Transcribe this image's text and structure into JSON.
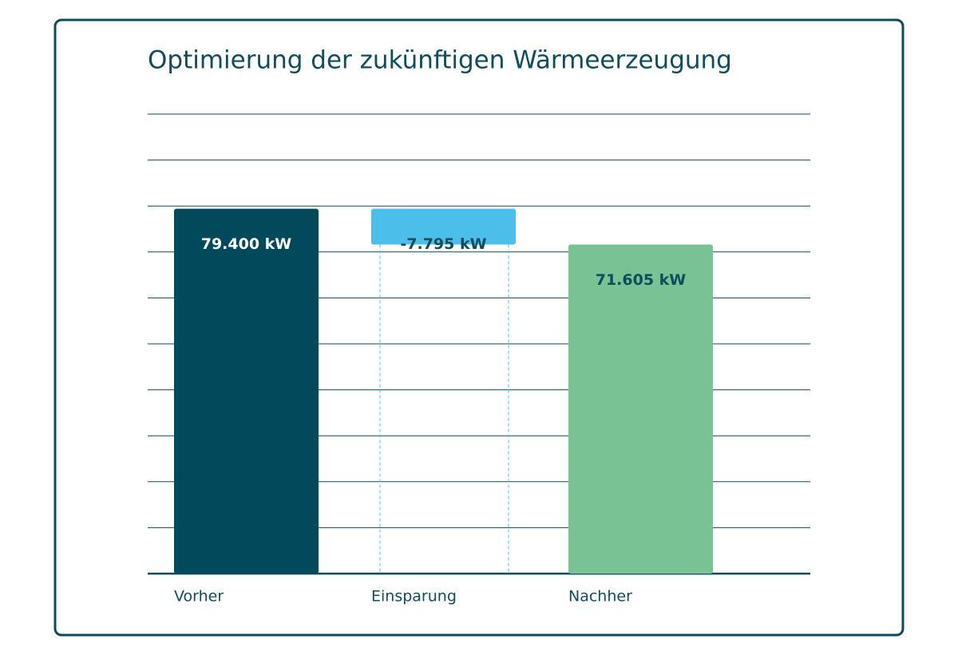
{
  "chart_data": {
    "type": "waterfall",
    "title": "Optimierung der zukünftigen Wärmeerzeugung",
    "categories": [
      "Vorher",
      "Einsparung",
      "Nachher"
    ],
    "values": [
      79400,
      -7795,
      71605
    ],
    "value_labels": [
      "79.400 kW",
      "-7.795 kW",
      "71.605 kW"
    ],
    "measure": [
      "absolute",
      "relative",
      "absolute"
    ],
    "colors": [
      "#03495c",
      "#4bbfea",
      "#78c294"
    ],
    "label_colors": [
      "#ffffff",
      "#0f4c5c",
      "#0f4c5c"
    ],
    "ylim": [
      0,
      100000
    ],
    "yticks": [
      0,
      10000,
      20000,
      30000,
      40000,
      50000,
      60000,
      70000,
      80000,
      90000,
      100000
    ],
    "tick_labels": false,
    "grid": true
  }
}
